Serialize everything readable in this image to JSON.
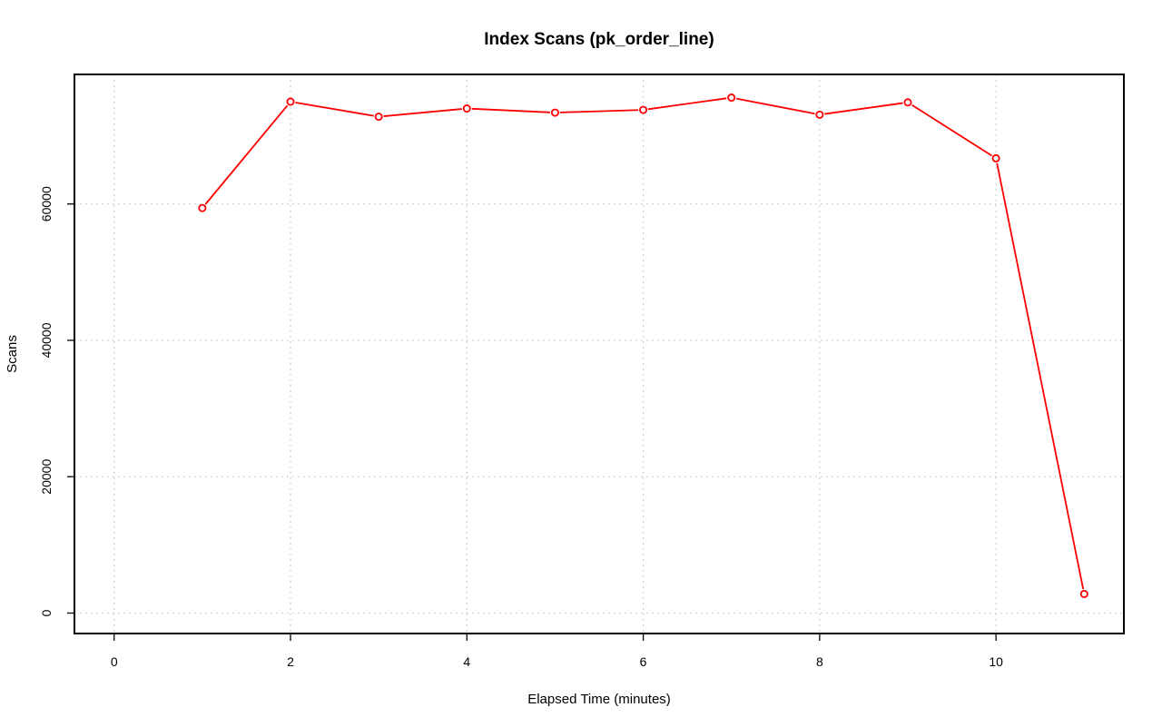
{
  "chart_data": {
    "type": "line",
    "title": "Index Scans (pk_order_line)",
    "xlabel": "Elapsed Time (minutes)",
    "ylabel": "Scans",
    "xlim": [
      -0.45,
      11.45
    ],
    "ylim": [
      -3000,
      79000
    ],
    "x_ticks": [
      0,
      2,
      4,
      6,
      8,
      10
    ],
    "x_tick_labels": [
      "0",
      "2",
      "4",
      "6",
      "8",
      "10"
    ],
    "y_ticks": [
      0,
      20000,
      40000,
      60000
    ],
    "y_tick_labels": [
      "0",
      "20000",
      "40000",
      "60000"
    ],
    "grid": true,
    "legend": "none",
    "series": [
      {
        "color": "#ff0000",
        "marker": "open-circle",
        "x": [
          1,
          2,
          3,
          4,
          5,
          6,
          7,
          8,
          9,
          10,
          11
        ],
        "y": [
          59400,
          75000,
          72800,
          74000,
          73400,
          73800,
          75600,
          73100,
          74900,
          66700,
          2800
        ]
      }
    ]
  }
}
